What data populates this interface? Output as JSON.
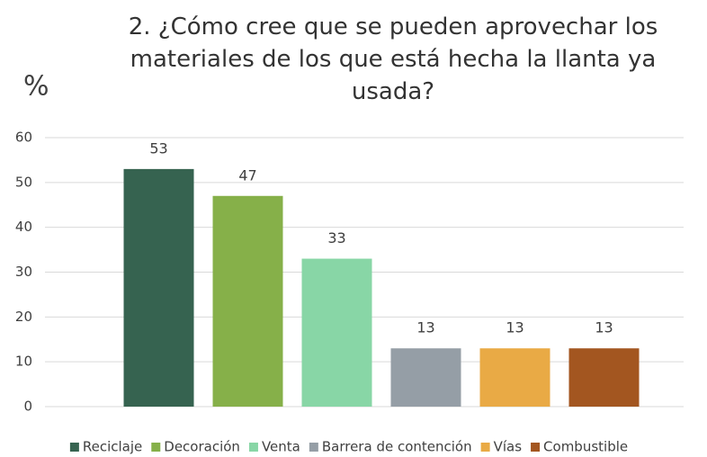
{
  "chart_data": {
    "type": "bar",
    "title": "2. ¿Cómo cree que se pueden aprovechar los materiales de los que está hecha la llanta ya usada?",
    "y_label": "%",
    "categories": [
      "Reciclaje",
      "Decoración",
      "Venta",
      "Barrera de contención",
      "Vías",
      "Combustible"
    ],
    "values": [
      53,
      47,
      33,
      13,
      13,
      13
    ],
    "colors": [
      "#366350",
      "#86b049",
      "#88d6a6",
      "#959ea6",
      "#e9aa45",
      "#a35620"
    ],
    "ylim": [
      0,
      60
    ],
    "yticks": [
      0,
      10,
      20,
      30,
      40,
      50,
      60
    ],
    "grid": true,
    "legend": "bottom"
  }
}
